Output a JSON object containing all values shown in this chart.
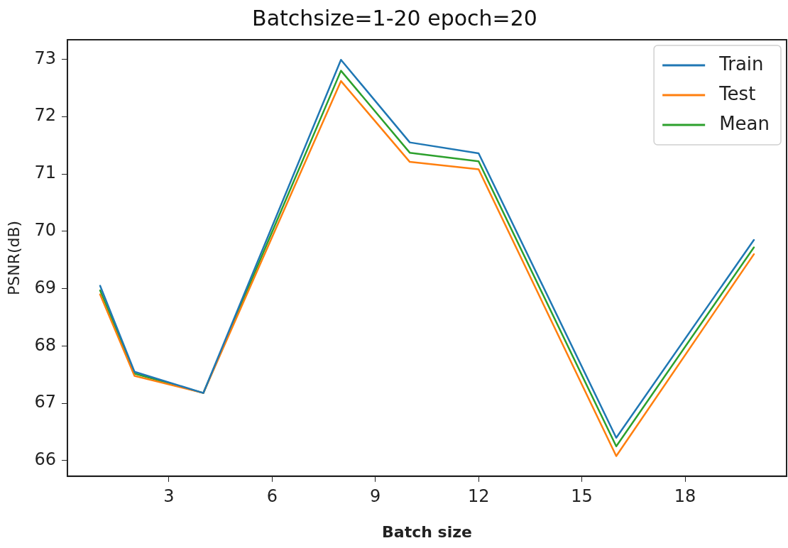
{
  "chart_data": {
    "type": "line",
    "title": "Batchsize=1-20 epoch=20",
    "xlabel": "Batch size",
    "ylabel": "PSNR(dB)",
    "x": [
      1,
      2,
      4,
      8,
      10,
      12,
      16,
      20
    ],
    "series": [
      {
        "name": "Train",
        "color": "#1f77b4",
        "values": [
          69.05,
          67.55,
          67.18,
          72.99,
          71.55,
          71.36,
          66.4,
          69.85
        ]
      },
      {
        "name": "Test",
        "color": "#ff7f0e",
        "values": [
          68.9,
          67.48,
          67.18,
          72.62,
          71.21,
          71.08,
          66.08,
          69.6
        ]
      },
      {
        "name": "Mean",
        "color": "#2ca02c",
        "values": [
          68.97,
          67.52,
          67.18,
          72.8,
          71.37,
          71.22,
          66.25,
          69.72
        ]
      }
    ],
    "xlim": [
      0.05,
      20.95
    ],
    "xticks": [
      3,
      6,
      9,
      12,
      15,
      18
    ],
    "ylim": [
      65.73,
      73.34
    ],
    "yticks": [
      66,
      67,
      68,
      69,
      70,
      71,
      72,
      73
    ],
    "grid": false,
    "legend": "top right",
    "marker": "none",
    "line_style": "solid"
  }
}
